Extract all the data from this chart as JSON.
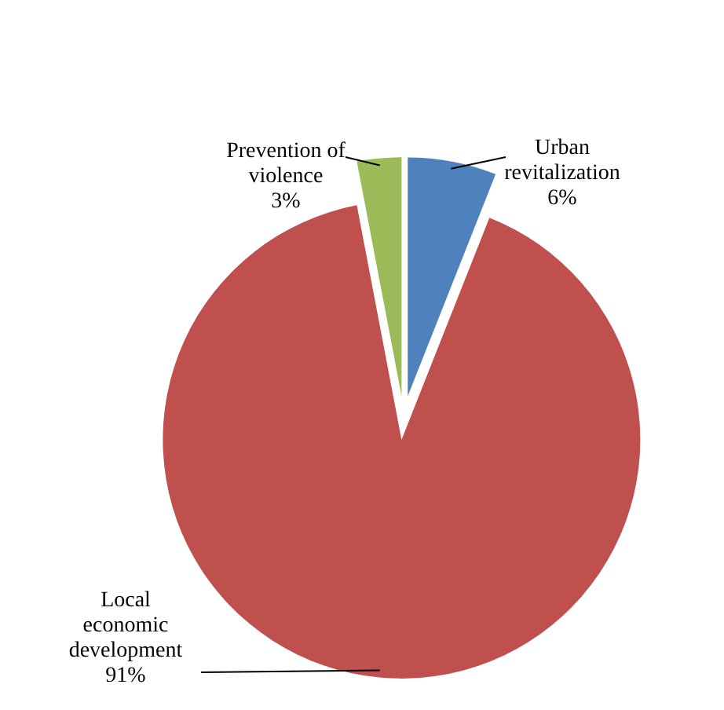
{
  "chart_data": {
    "type": "pie",
    "categories": [
      "Urban revitalization",
      "Local economic development",
      "Prevention of violence"
    ],
    "values": [
      6,
      91,
      3
    ],
    "colors": [
      "#4f81bd",
      "#c0504d",
      "#9bbb59"
    ],
    "value_labels": [
      "6%",
      "91%",
      "3%"
    ]
  }
}
